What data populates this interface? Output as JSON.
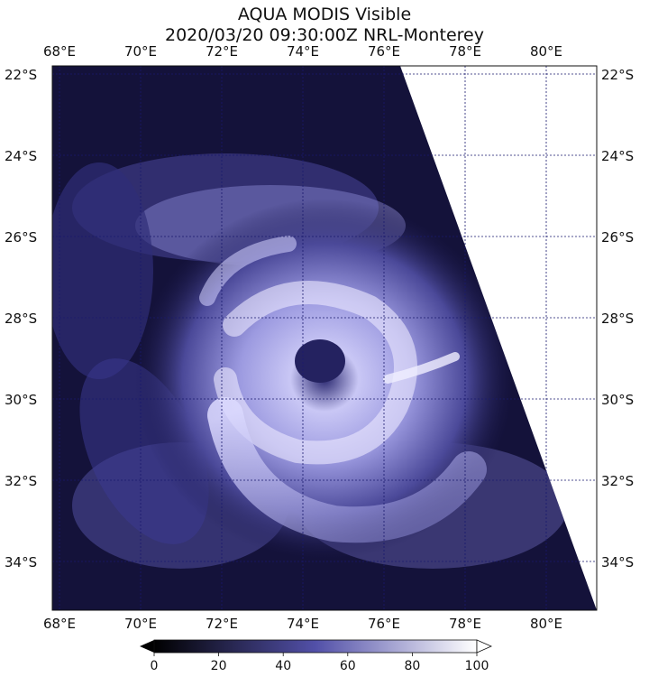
{
  "title": {
    "line1": "AQUA MODIS Visible",
    "line2": "2020/03/20 09:30:00Z NRL-Monterey"
  },
  "map": {
    "lon_labels": [
      "68°E",
      "70°E",
      "72°E",
      "74°E",
      "76°E",
      "78°E",
      "80°E"
    ],
    "lat_labels": [
      "22°S",
      "24°S",
      "26°S",
      "28°S",
      "30°S",
      "32°S",
      "34°S"
    ],
    "lon_values": [
      68,
      70,
      72,
      74,
      76,
      78,
      80
    ],
    "lat_values": [
      -22,
      -24,
      -26,
      -28,
      -30,
      -32,
      -34
    ],
    "gridline_color": "#1a1a6e",
    "imagery_base_color": "#14123a",
    "cloud_color": "#e8e6ff"
  },
  "colorbar": {
    "ticks": [
      "0",
      "20",
      "40",
      "60",
      "80",
      "100"
    ],
    "min": 0,
    "max": 100,
    "color_low": "#000000",
    "color_mid": "#5250a8",
    "color_high": "#ffffff"
  }
}
